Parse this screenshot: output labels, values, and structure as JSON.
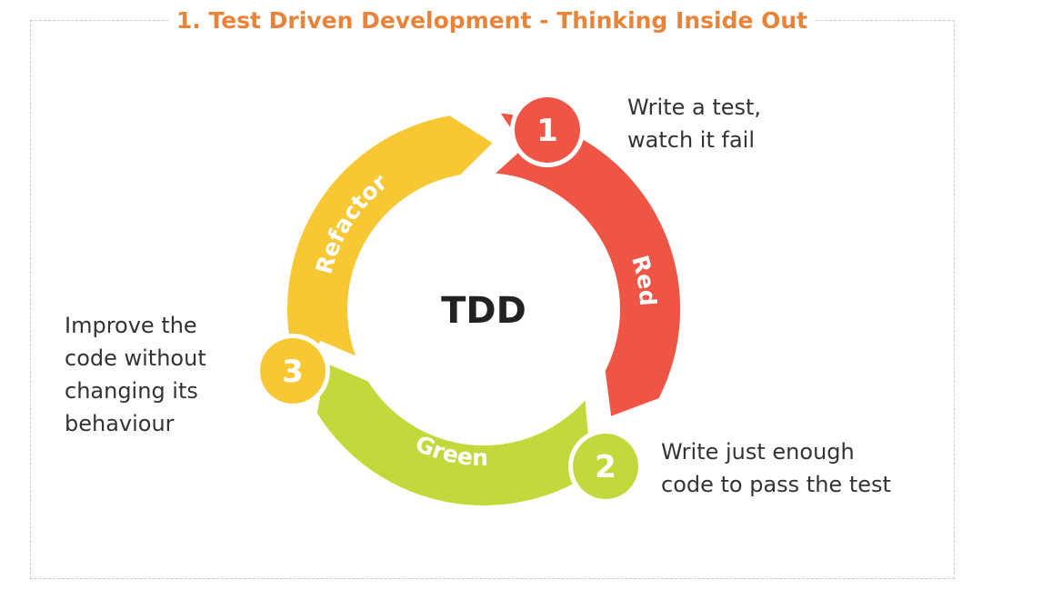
{
  "title": "1. Test Driven Development - Thinking Inside Out",
  "center_label": "TDD",
  "stages": [
    {
      "number": "1",
      "label": "Red",
      "color": "#ef5545",
      "note": "Write a test,\nwatch it fail"
    },
    {
      "number": "2",
      "label": "Green",
      "color": "#c3d83a",
      "note": "Write just enough\ncode to pass the test"
    },
    {
      "number": "3",
      "label": "Refactor",
      "color": "#f7c834",
      "note": "Improve the\ncode without\nchanging its\nbehaviour"
    }
  ],
  "colors": {
    "title": "#e8833a",
    "frame": "#c8c8c8",
    "text": "#333333"
  }
}
